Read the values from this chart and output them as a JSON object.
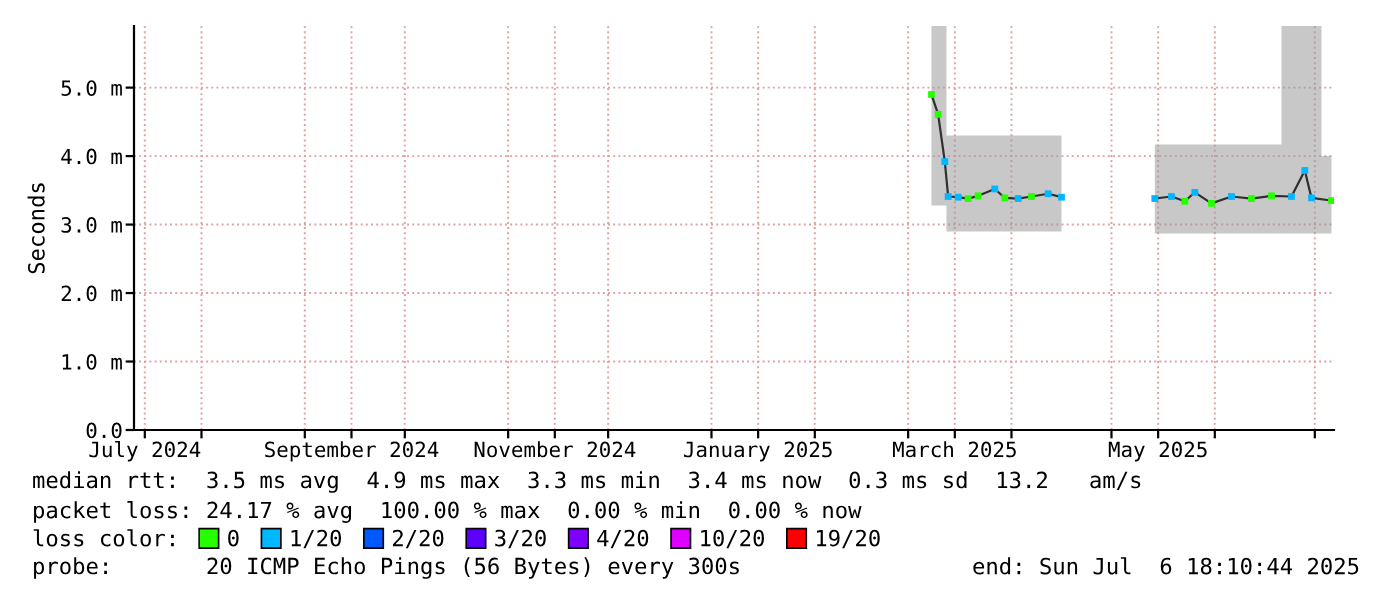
{
  "chart_data": {
    "type": "line",
    "ylabel": "Seconds",
    "legend_title": "loss color:",
    "legend": "bottom",
    "grid": true,
    "marker": "square",
    "xlim": [
      "2024-07-11T18:10",
      "2025-07-06T18:10"
    ],
    "xticks": [
      {
        "value": "2024-07-15",
        "label": "July 2024"
      },
      {
        "value": "2024-08-01",
        "label": null
      },
      {
        "value": "2024-09-01",
        "label": null
      },
      {
        "value": "2024-09-15",
        "label": "September 2024"
      },
      {
        "value": "2024-10-01",
        "label": null
      },
      {
        "value": "2024-11-01",
        "label": null
      },
      {
        "value": "2024-11-15",
        "label": "November 2024"
      },
      {
        "value": "2024-12-01",
        "label": null
      },
      {
        "value": "2025-01-01",
        "label": null
      },
      {
        "value": "2025-01-15",
        "label": "January 2025"
      },
      {
        "value": "2025-02-01",
        "label": null
      },
      {
        "value": "2025-03-01",
        "label": null
      },
      {
        "value": "2025-03-15",
        "label": "March 2025"
      },
      {
        "value": "2025-04-01",
        "label": null
      },
      {
        "value": "2025-05-01",
        "label": null
      },
      {
        "value": "2025-05-15",
        "label": "May 2025"
      },
      {
        "value": "2025-06-01",
        "label": null
      },
      {
        "value": "2025-07-01",
        "label": null
      }
    ],
    "ylim": [
      0,
      5.9
    ],
    "yticks": [
      {
        "value": 0,
        "label": "0.0"
      },
      {
        "value": 1,
        "label": "1.0 m"
      },
      {
        "value": 2,
        "label": "2.0 m"
      },
      {
        "value": 3,
        "label": "3.0 m"
      },
      {
        "value": 4,
        "label": "4.0 m"
      },
      {
        "value": 5,
        "label": "5.0 m"
      }
    ],
    "series": [
      {
        "marker": "none",
        "color": "#303030",
        "x": [
          "2025-03-08",
          "2025-03-10",
          "2025-03-12",
          "2025-03-13",
          "2025-03-16",
          "2025-03-19",
          "2025-03-22",
          "2025-03-27",
          "2025-03-30",
          "2025-04-03",
          "2025-04-07",
          "2025-04-12",
          "2025-04-16",
          null,
          "2025-05-14",
          "2025-05-19",
          "2025-05-23",
          "2025-05-26",
          "2025-05-31",
          "2025-06-06",
          "2025-06-12",
          "2025-06-18",
          "2025-06-24",
          "2025-06-28",
          "2025-06-30",
          "2025-07-06"
        ],
        "values": [
          4.9,
          4.61,
          3.92,
          3.41,
          3.4,
          3.38,
          3.42,
          3.52,
          3.39,
          3.38,
          3.41,
          3.45,
          3.4,
          null,
          3.38,
          3.41,
          3.34,
          3.47,
          3.31,
          3.41,
          3.38,
          3.42,
          3.41,
          3.79,
          3.39,
          3.35
        ],
        "lower": [
          3.28,
          3.28,
          3.28,
          2.9,
          2.9,
          2.9,
          2.9,
          2.9,
          2.9,
          2.9,
          2.9,
          2.9,
          2.9,
          null,
          2.87,
          2.87,
          2.87,
          2.87,
          2.87,
          2.87,
          2.87,
          2.87,
          2.87,
          2.87,
          2.87,
          2.87
        ],
        "upper": [
          5.9,
          5.9,
          5.9,
          4.3,
          4.3,
          4.3,
          4.3,
          4.3,
          4.3,
          4.3,
          4.3,
          4.3,
          4.3,
          null,
          4.17,
          4.17,
          4.17,
          4.17,
          4.17,
          4.17,
          4.17,
          4.17,
          5.9,
          5.9,
          5.9,
          4.0
        ]
      },
      {
        "type": "scatter",
        "name": "0",
        "color": "#26ff00",
        "x": [
          "2025-03-08",
          "2025-03-10",
          "2025-03-19",
          "2025-03-22",
          "2025-03-30",
          "2025-04-07",
          "2025-05-23",
          "2025-05-31",
          "2025-06-12",
          "2025-06-18",
          "2025-07-06"
        ],
        "values": [
          4.9,
          4.61,
          3.38,
          3.42,
          3.39,
          3.41,
          3.34,
          3.31,
          3.38,
          3.42,
          3.35
        ]
      },
      {
        "type": "scatter",
        "name": "1/20",
        "color": "#00b8ff",
        "x": [
          "2025-03-12",
          "2025-03-13",
          "2025-03-16",
          "2025-03-27",
          "2025-04-03",
          "2025-04-12",
          "2025-04-16",
          "2025-05-14",
          "2025-05-19",
          "2025-05-26",
          "2025-06-06",
          "2025-06-24",
          "2025-06-28",
          "2025-06-30"
        ],
        "values": [
          3.92,
          3.41,
          3.4,
          3.52,
          3.38,
          3.45,
          3.4,
          3.38,
          3.41,
          3.47,
          3.41,
          3.41,
          3.79,
          3.39
        ]
      },
      {
        "type": "scatter",
        "name": "2/20",
        "color": "#0059ff"
      },
      {
        "type": "scatter",
        "name": "3/20",
        "color": "#5e00ff"
      },
      {
        "type": "scatter",
        "name": "4/20",
        "color": "#7e00ff"
      },
      {
        "type": "scatter",
        "name": "10/20",
        "color": "#dd00ff"
      },
      {
        "type": "scatter",
        "name": "19/20",
        "color": "#ff0000"
      }
    ],
    "annotations": [
      "median rtt:  3.5 ms avg  4.9 ms max  3.3 ms min  3.4 ms now  0.3 ms sd  13.2   am/s",
      "packet loss: 24.17 % avg  100.00 % max  0.00 % min  0.00 % now",
      "probe:       20 ICMP Echo Pings (56 Bytes) every 300s",
      "end: Sun Jul  6 18:10:44 2025"
    ]
  }
}
